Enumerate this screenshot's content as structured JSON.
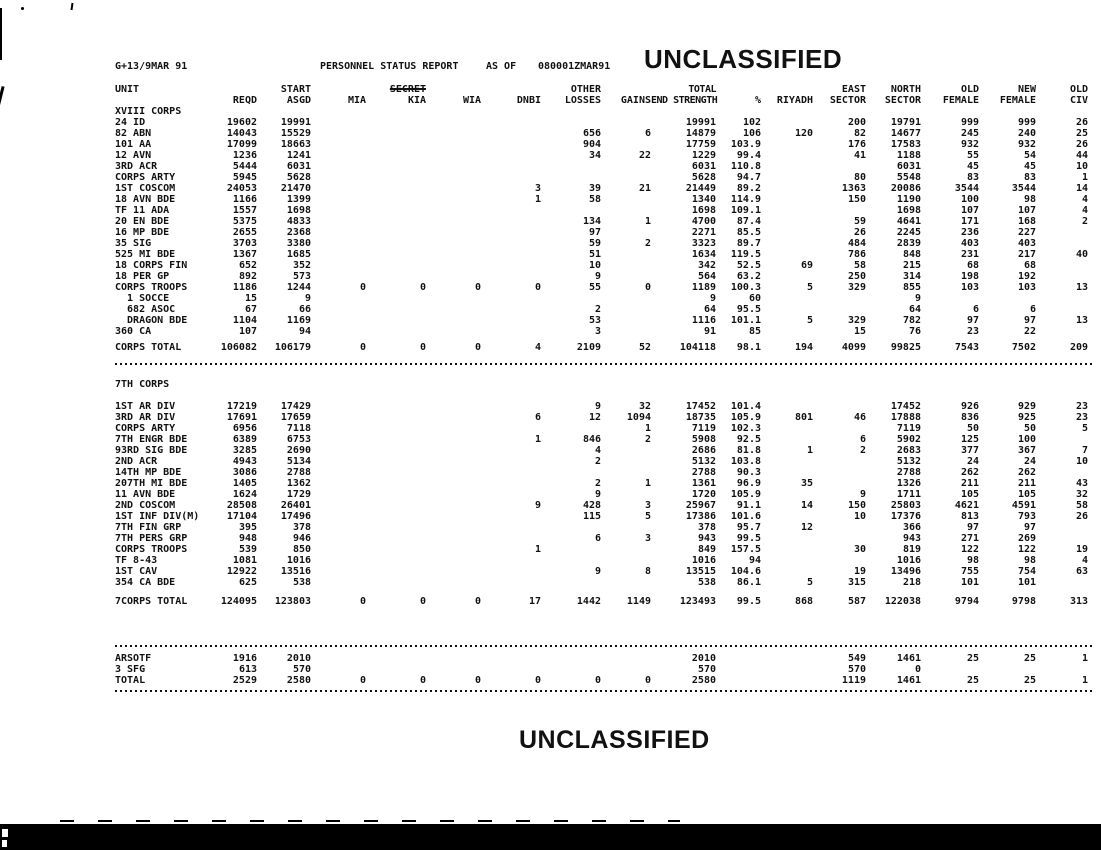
{
  "page": {
    "report_id": "G+13/9MAR 91",
    "title": "PERSONNEL STATUS REPORT",
    "as_of_label": "AS OF",
    "as_of_value": "080001ZMAR91",
    "classification_top": "UNCLASSIFIED",
    "classification_bottom": "UNCLASSIFIED",
    "ink_color": "#111111",
    "paper_color": "#ffffff"
  },
  "table": {
    "column_keys": [
      "unit",
      "reqd",
      "asgd",
      "mia",
      "kia",
      "wia",
      "dnbi",
      "other",
      "gains",
      "end",
      "pct",
      "riyadh",
      "east",
      "north",
      "oldf",
      "newf",
      "civ"
    ],
    "rows": [
      {
        "type": "hdr",
        "cells": [
          "UNIT",
          "",
          "START",
          "",
          "SECRET",
          "",
          "",
          "OTHER",
          "",
          "TOTAL",
          "",
          "",
          "EAST",
          "NORTH",
          "OLD",
          "NEW",
          "OLD"
        ],
        "strike": 4
      },
      {
        "type": "hdr",
        "cells": [
          "",
          "REQD",
          "ASGD",
          "MIA",
          "KIA",
          "WIA",
          "DNBI",
          "LOSSES",
          "GAINS",
          "END STRENGTH",
          "%",
          "RIYADH",
          "SECTOR",
          "SECTOR",
          "FEMALE",
          "FEMALE",
          "CIV"
        ]
      },
      {
        "type": "row",
        "cells": [
          "XVIII CORPS",
          "",
          "",
          "",
          "",
          "",
          "",
          "",
          "",
          "",
          "",
          "",
          "",
          "",
          "",
          "",
          ""
        ]
      },
      {
        "type": "row",
        "cells": [
          "24 ID",
          "19602",
          "19991",
          "",
          "",
          "",
          "",
          "",
          "",
          "19991",
          "102",
          "",
          "200",
          "19791",
          "999",
          "999",
          "26"
        ]
      },
      {
        "type": "row",
        "cells": [
          "82 ABN",
          "14043",
          "15529",
          "",
          "",
          "",
          "",
          "656",
          "6",
          "14879",
          "106",
          "120",
          "82",
          "14677",
          "245",
          "240",
          "25"
        ]
      },
      {
        "type": "row",
        "cells": [
          "101 AA",
          "17099",
          "18663",
          "",
          "",
          "",
          "",
          "904",
          "",
          "17759",
          "103.9",
          "",
          "176",
          "17583",
          "932",
          "932",
          "26"
        ]
      },
      {
        "type": "row",
        "cells": [
          "12 AVN",
          "1236",
          "1241",
          "",
          "",
          "",
          "",
          "34",
          "22",
          "1229",
          "99.4",
          "",
          "41",
          "1188",
          "55",
          "54",
          "44"
        ]
      },
      {
        "type": "row",
        "cells": [
          "3RD ACR",
          "5444",
          "6031",
          "",
          "",
          "",
          "",
          "",
          "",
          "6031",
          "110.8",
          "",
          "",
          "6031",
          "45",
          "45",
          "10"
        ]
      },
      {
        "type": "row",
        "cells": [
          "CORPS ARTY",
          "5945",
          "5628",
          "",
          "",
          "",
          "",
          "",
          "",
          "5628",
          "94.7",
          "",
          "80",
          "5548",
          "83",
          "83",
          "1"
        ]
      },
      {
        "type": "row",
        "cells": [
          "1ST COSCOM",
          "24053",
          "21470",
          "",
          "",
          "",
          "3",
          "39",
          "21",
          "21449",
          "89.2",
          "",
          "1363",
          "20086",
          "3544",
          "3544",
          "14"
        ]
      },
      {
        "type": "row",
        "cells": [
          "18 AVN BDE",
          "1166",
          "1399",
          "",
          "",
          "",
          "1",
          "58",
          "",
          "1340",
          "114.9",
          "",
          "150",
          "1190",
          "100",
          "98",
          "4"
        ]
      },
      {
        "type": "row",
        "cells": [
          "TF 11 ADA",
          "1557",
          "1698",
          "",
          "",
          "",
          "",
          "",
          "",
          "1698",
          "109.1",
          "",
          "",
          "1698",
          "107",
          "107",
          "4"
        ]
      },
      {
        "type": "row",
        "cells": [
          "20 EN BDE",
          "5375",
          "4833",
          "",
          "",
          "",
          "",
          "134",
          "1",
          "4700",
          "87.4",
          "",
          "59",
          "4641",
          "171",
          "168",
          "2"
        ]
      },
      {
        "type": "row",
        "cells": [
          "16 MP BDE",
          "2655",
          "2368",
          "",
          "",
          "",
          "",
          "97",
          "",
          "2271",
          "85.5",
          "",
          "26",
          "2245",
          "236",
          "227",
          ""
        ]
      },
      {
        "type": "row",
        "cells": [
          "35 SIG",
          "3703",
          "3380",
          "",
          "",
          "",
          "",
          "59",
          "2",
          "3323",
          "89.7",
          "",
          "484",
          "2839",
          "403",
          "403",
          ""
        ]
      },
      {
        "type": "row",
        "cells": [
          "525 MI BDE",
          "1367",
          "1685",
          "",
          "",
          "",
          "",
          "51",
          "",
          "1634",
          "119.5",
          "",
          "786",
          "848",
          "231",
          "217",
          "40"
        ]
      },
      {
        "type": "row",
        "cells": [
          "18 CORPS FIN",
          "652",
          "352",
          "",
          "",
          "",
          "",
          "10",
          "",
          "342",
          "52.5",
          "69",
          "58",
          "215",
          "68",
          "68",
          ""
        ]
      },
      {
        "type": "row",
        "cells": [
          "18 PER GP",
          "892",
          "573",
          "",
          "",
          "",
          "",
          "9",
          "",
          "564",
          "63.2",
          "",
          "250",
          "314",
          "198",
          "192",
          ""
        ]
      },
      {
        "type": "row",
        "cells": [
          "CORPS TROOPS",
          "1186",
          "1244",
          "0",
          "0",
          "0",
          "0",
          "55",
          "0",
          "1189",
          "100.3",
          "5",
          "329",
          "855",
          "103",
          "103",
          "13"
        ]
      },
      {
        "type": "row",
        "cells": [
          "  1 SOCCE",
          "15",
          "9",
          "",
          "",
          "",
          "",
          "",
          "",
          "9",
          "60",
          "",
          "",
          "9",
          "",
          "",
          ""
        ]
      },
      {
        "type": "row",
        "cells": [
          "  682 ASOC",
          "67",
          "66",
          "",
          "",
          "",
          "",
          "2",
          "",
          "64",
          "95.5",
          "",
          "",
          "64",
          "6",
          "6",
          ""
        ]
      },
      {
        "type": "row",
        "cells": [
          "  DRAGON BDE",
          "1104",
          "1169",
          "",
          "",
          "",
          "",
          "53",
          "",
          "1116",
          "101.1",
          "5",
          "329",
          "782",
          "97",
          "97",
          "13"
        ]
      },
      {
        "type": "row",
        "cells": [
          "360 CA",
          "107",
          "94",
          "",
          "",
          "",
          "",
          "3",
          "",
          "91",
          "85",
          "",
          "15",
          "76",
          "23",
          "22",
          ""
        ]
      },
      {
        "type": "gap",
        "h": 5
      },
      {
        "type": "row",
        "cells": [
          "CORPS TOTAL",
          "106082",
          "106179",
          "0",
          "0",
          "0",
          "4",
          "2109",
          "52",
          "104118",
          "98.1",
          "194",
          "4099",
          "99825",
          "7543",
          "7502",
          "209"
        ]
      },
      {
        "type": "gap",
        "h": 6
      },
      {
        "type": "dots"
      },
      {
        "type": "gap",
        "h": 8
      },
      {
        "type": "row",
        "cells": [
          "7TH CORPS",
          "",
          "",
          "",
          "",
          "",
          "",
          "",
          "",
          "",
          "",
          "",
          "",
          "",
          "",
          "",
          ""
        ]
      },
      {
        "type": "gap",
        "h": 11
      },
      {
        "type": "row",
        "cells": [
          "1ST AR DIV",
          "17219",
          "17429",
          "",
          "",
          "",
          "",
          "9",
          "32",
          "17452",
          "101.4",
          "",
          "",
          "17452",
          "926",
          "929",
          "23"
        ]
      },
      {
        "type": "row",
        "cells": [
          "3RD AR DIV",
          "17691",
          "17659",
          "",
          "",
          "",
          "6",
          "12",
          "1094",
          "18735",
          "105.9",
          "801",
          "46",
          "17888",
          "836",
          "925",
          "23"
        ]
      },
      {
        "type": "row",
        "cells": [
          "CORPS ARTY",
          "6956",
          "7118",
          "",
          "",
          "",
          "",
          "",
          "1",
          "7119",
          "102.3",
          "",
          "",
          "7119",
          "50",
          "50",
          "5"
        ]
      },
      {
        "type": "row",
        "cells": [
          "7TH ENGR BDE",
          "6389",
          "6753",
          "",
          "",
          "",
          "1",
          "846",
          "2",
          "5908",
          "92.5",
          "",
          "6",
          "5902",
          "125",
          "100",
          ""
        ]
      },
      {
        "type": "row",
        "cells": [
          "93RD SIG BDE",
          "3285",
          "2690",
          "",
          "",
          "",
          "",
          "4",
          "",
          "2686",
          "81.8",
          "1",
          "2",
          "2683",
          "377",
          "367",
          "7"
        ]
      },
      {
        "type": "row",
        "cells": [
          "2ND ACR",
          "4943",
          "5134",
          "",
          "",
          "",
          "",
          "2",
          "",
          "5132",
          "103.8",
          "",
          "",
          "5132",
          "24",
          "24",
          "10"
        ]
      },
      {
        "type": "row",
        "cells": [
          "14TH MP BDE",
          "3086",
          "2788",
          "",
          "",
          "",
          "",
          "",
          "",
          "2788",
          "90.3",
          "",
          "",
          "2788",
          "262",
          "262",
          ""
        ]
      },
      {
        "type": "row",
        "cells": [
          "207TH MI BDE",
          "1405",
          "1362",
          "",
          "",
          "",
          "",
          "2",
          "1",
          "1361",
          "96.9",
          "35",
          "",
          "1326",
          "211",
          "211",
          "43"
        ]
      },
      {
        "type": "row",
        "cells": [
          "11 AVN BDE",
          "1624",
          "1729",
          "",
          "",
          "",
          "",
          "9",
          "",
          "1720",
          "105.9",
          "",
          "9",
          "1711",
          "105",
          "105",
          "32"
        ]
      },
      {
        "type": "row",
        "cells": [
          "2ND COSCOM",
          "28508",
          "26401",
          "",
          "",
          "",
          "9",
          "428",
          "3",
          "25967",
          "91.1",
          "14",
          "150",
          "25803",
          "4621",
          "4591",
          "58"
        ]
      },
      {
        "type": "row",
        "cells": [
          "1ST INF DIV(M)",
          "17104",
          "17496",
          "",
          "",
          "",
          "",
          "115",
          "5",
          "17386",
          "101.6",
          "",
          "10",
          "17376",
          "813",
          "793",
          "26"
        ]
      },
      {
        "type": "row",
        "cells": [
          "7TH FIN GRP",
          "395",
          "378",
          "",
          "",
          "",
          "",
          "",
          "",
          "378",
          "95.7",
          "12",
          "",
          "366",
          "97",
          "97",
          ""
        ]
      },
      {
        "type": "row",
        "cells": [
          "7TH PERS GRP",
          "948",
          "946",
          "",
          "",
          "",
          "",
          "6",
          "3",
          "943",
          "99.5",
          "",
          "",
          "943",
          "271",
          "269",
          ""
        ]
      },
      {
        "type": "row",
        "cells": [
          "CORPS TROOPS",
          "539",
          "850",
          "",
          "",
          "",
          "1",
          "",
          "",
          "849",
          "157.5",
          "",
          "30",
          "819",
          "122",
          "122",
          "19"
        ]
      },
      {
        "type": "row",
        "cells": [
          "TF 8-43",
          "1081",
          "1016",
          "",
          "",
          "",
          "",
          "",
          "",
          "1016",
          "94",
          "",
          "",
          "1016",
          "98",
          "98",
          "4"
        ]
      },
      {
        "type": "row",
        "cells": [
          "1ST CAV",
          "12922",
          "13516",
          "",
          "",
          "",
          "",
          "9",
          "8",
          "13515",
          "104.6",
          "",
          "19",
          "13496",
          "755",
          "754",
          "63"
        ]
      },
      {
        "type": "row",
        "cells": [
          "354 CA BDE",
          "625",
          "538",
          "",
          "",
          "",
          "",
          "",
          "",
          "538",
          "86.1",
          "5",
          "315",
          "218",
          "101",
          "101",
          ""
        ]
      },
      {
        "type": "gap",
        "h": 8
      },
      {
        "type": "row",
        "cells": [
          "7CORPS TOTAL",
          "124095",
          "123803",
          "0",
          "0",
          "0",
          "17",
          "1442",
          "1149",
          "123493",
          "99.5",
          "868",
          "587",
          "122038",
          "9794",
          "9798",
          "313"
        ]
      },
      {
        "type": "gap",
        "h": 34
      },
      {
        "type": "dots"
      },
      {
        "type": "row",
        "cells": [
          "ARSOTF",
          "1916",
          "2010",
          "",
          "",
          "",
          "",
          "",
          "",
          "2010",
          "",
          "",
          "549",
          "1461",
          "25",
          "25",
          "1"
        ]
      },
      {
        "type": "row",
        "cells": [
          "3 SFG",
          "613",
          "570",
          "",
          "",
          "",
          "",
          "",
          "",
          "570",
          "",
          "",
          "570",
          "0",
          "",
          "",
          ""
        ]
      },
      {
        "type": "row",
        "cells": [
          "TOTAL",
          "2529",
          "2580",
          "0",
          "0",
          "0",
          "0",
          "0",
          "0",
          "2580",
          "",
          "",
          "1119",
          "1461",
          "25",
          "25",
          "1"
        ]
      },
      {
        "type": "dots"
      }
    ]
  }
}
